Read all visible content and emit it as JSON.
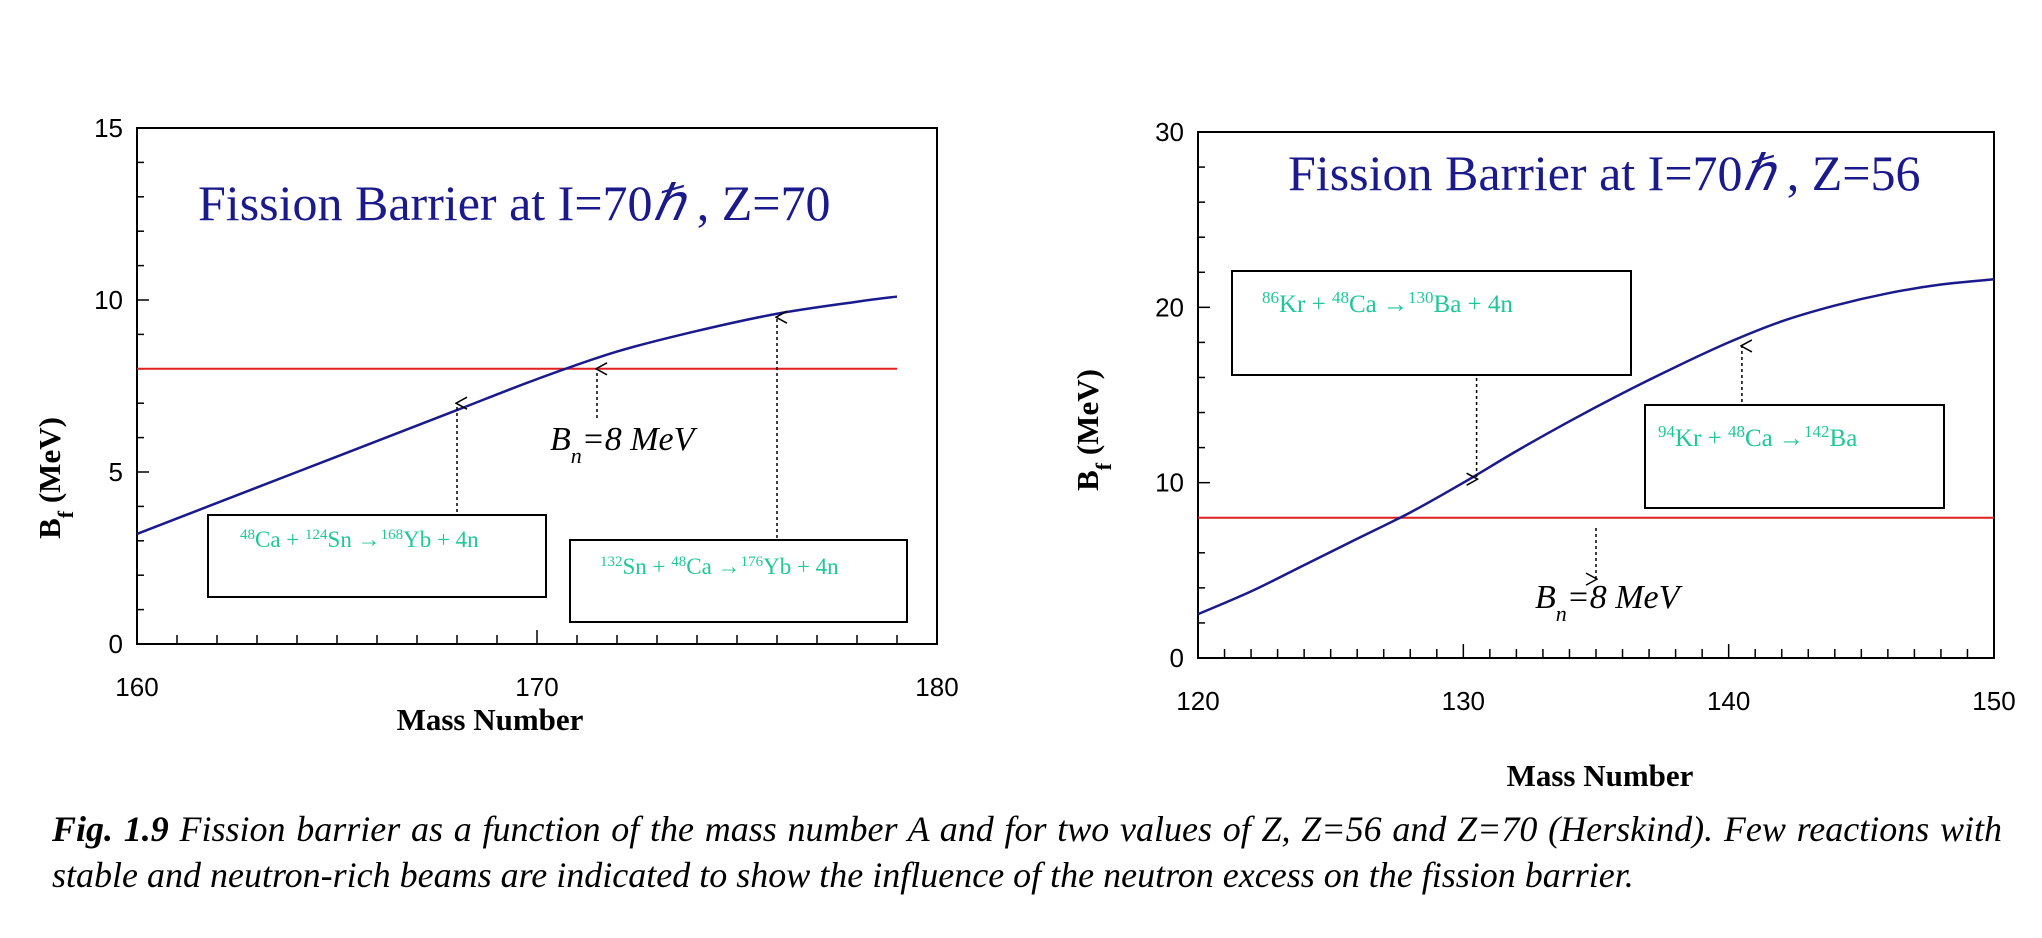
{
  "chart_data": [
    {
      "type": "line",
      "title": "Fission Barrier at I=70ℏ , Z=70",
      "xlabel": "Mass Number",
      "ylabel": "Bf (MeV)",
      "xlim": [
        160,
        180
      ],
      "ylim": [
        0,
        15
      ],
      "xticks": [
        "160",
        "170",
        "180"
      ],
      "yticks": [
        "0",
        "5",
        "10",
        "15"
      ],
      "series": [
        {
          "x": [
            160,
            162,
            164,
            166,
            168,
            170,
            172,
            174,
            176,
            178,
            179
          ],
          "values": [
            3.2,
            4.1,
            5.0,
            5.9,
            6.8,
            7.7,
            8.5,
            9.1,
            9.6,
            9.95,
            10.1
          ],
          "color": "#1a1a8c"
        },
        {
          "x": [
            160,
            179
          ],
          "values": [
            8,
            8
          ],
          "color": "#e02020"
        }
      ],
      "annotations": [
        {
          "text": "48Ca + 124Sn → 168Yb + 4n",
          "arrow_x": 168,
          "arrow_y": 7.0
        },
        {
          "text": "132Sn + 48Ca → 176Yb + 4n",
          "arrow_x": 176,
          "arrow_y": 9.5
        },
        {
          "text": "Bn=8 MeV",
          "arrow_x": 171.5,
          "arrow_y": 8.0
        }
      ]
    },
    {
      "type": "line",
      "title": "Fission Barrier at I=70ℏ , Z=56",
      "xlabel": "Mass Number",
      "ylabel": "Bf (MeV)",
      "xlim": [
        120,
        150
      ],
      "ylim": [
        0,
        30
      ],
      "xticks": [
        "120",
        "130",
        "140",
        "150"
      ],
      "yticks": [
        "0",
        "10",
        "20",
        "30"
      ],
      "series": [
        {
          "x": [
            120,
            122,
            124,
            126,
            128,
            130,
            132,
            134,
            136,
            138,
            140,
            142,
            144,
            146,
            148,
            150
          ],
          "values": [
            2.5,
            3.8,
            5.3,
            6.8,
            8.3,
            10.0,
            11.8,
            13.5,
            15.1,
            16.6,
            18.0,
            19.2,
            20.1,
            20.8,
            21.3,
            21.6
          ],
          "color": "#1a1a8c"
        },
        {
          "x": [
            120,
            150
          ],
          "values": [
            8,
            8
          ],
          "color": "#e02020"
        }
      ],
      "annotations": [
        {
          "text": "86Kr + 48Ca → 130Ba + 4n",
          "arrow_x": 130.5,
          "arrow_y": 10.2
        },
        {
          "text": "94Kr + 48Ca → 142Ba",
          "arrow_x": 140.5,
          "arrow_y": 17.8
        },
        {
          "text": "Bn=8 MeV",
          "arrow_x": 135,
          "arrow_y": 4.5
        }
      ]
    }
  ],
  "labels": {
    "left_title_main": "Fission Barrier at I=70",
    "left_title_hbar": "ℏ",
    "left_title_rest": " , Z=70",
    "right_title_main": "Fission Barrier at I=70",
    "right_title_hbar": "ℏ",
    "right_title_rest": " , Z=56",
    "ylabel_main": "B",
    "ylabel_sub": "f",
    "ylabel_rest": " (MeV)",
    "xlabel": "Mass Number",
    "bn_main": "B",
    "bn_sub": "n",
    "bn_rest": "=8 MeV",
    "left_rxn1": {
      "m1": "48",
      "e1": "Ca + ",
      "m2": "124",
      "e2": "Sn →",
      "m3": "168",
      "e3": "Yb + 4n"
    },
    "left_rxn2": {
      "m1": "132",
      "e1": "Sn + ",
      "m2": "48",
      "e2": "Ca →",
      "m3": "176",
      "e3": "Yb + 4n"
    },
    "right_rxn1": {
      "m1": "86",
      "e1": "Kr + ",
      "m2": "48",
      "e2": "Ca →",
      "m3": "130",
      "e3": "Ba + 4n"
    },
    "right_rxn2": {
      "m1": "94",
      "e1": "Kr + ",
      "m2": "48",
      "e2": "Ca →",
      "m3": "142",
      "e3": "Ba"
    }
  },
  "caption": {
    "fig_label": "Fig. 1.9",
    "text": " Fission barrier as a function of the mass number A and for two values of Z, Z=56 and Z=70 (Herskind). Few reactions with stable and neutron-rich beams are indicated to show the influence of the neutron excess on the fission barrier."
  },
  "colors": {
    "curve": "#1a1a8c",
    "threshold": "#e02020",
    "annotation_text": "#1fc79a",
    "title": "#1a1a8c"
  }
}
